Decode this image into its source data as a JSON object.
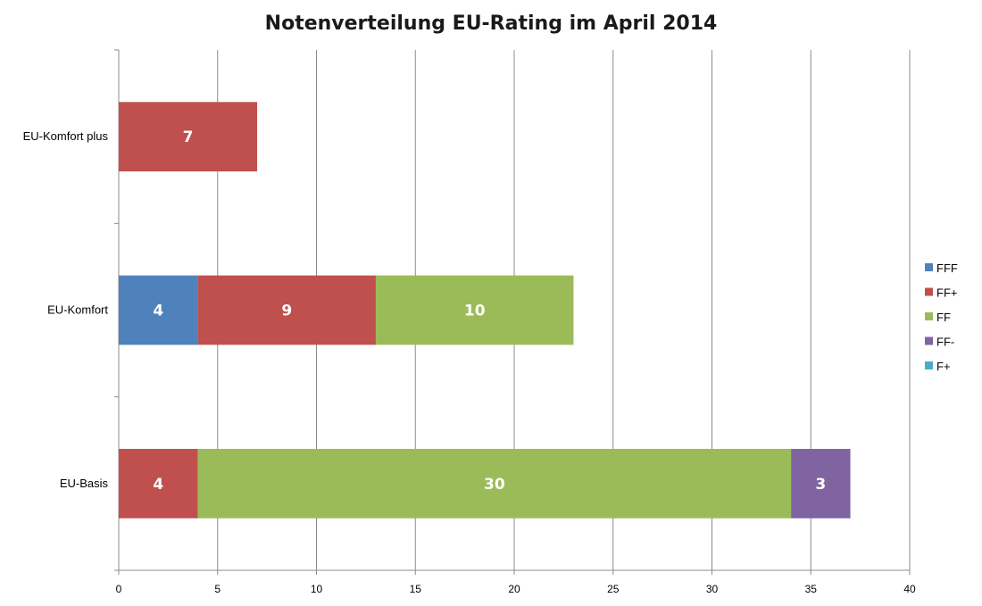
{
  "chart_data": {
    "type": "bar",
    "orientation": "horizontal",
    "stacked": true,
    "title": "Notenverteilung EU-Rating im April 2014",
    "categories": [
      "EU-Komfort plus",
      "EU-Komfort",
      "EU-Basis"
    ],
    "series": [
      {
        "name": "FFF",
        "color": "#4f81bd",
        "values": [
          0,
          4,
          0
        ]
      },
      {
        "name": "FF+",
        "color": "#c0504d",
        "values": [
          7,
          9,
          4
        ]
      },
      {
        "name": "FF",
        "color": "#9bbb59",
        "values": [
          0,
          10,
          30
        ]
      },
      {
        "name": "FF-",
        "color": "#8064a2",
        "values": [
          0,
          0,
          3
        ]
      },
      {
        "name": "F+",
        "color": "#4bacc6",
        "values": [
          0,
          0,
          0
        ]
      }
    ],
    "xlim": [
      0,
      40
    ],
    "xticks": [
      0,
      5,
      10,
      15,
      20,
      25,
      30,
      35,
      40
    ],
    "xlabel": "",
    "ylabel": "",
    "grid": true,
    "legend_position": "right",
    "data_labels": true
  }
}
